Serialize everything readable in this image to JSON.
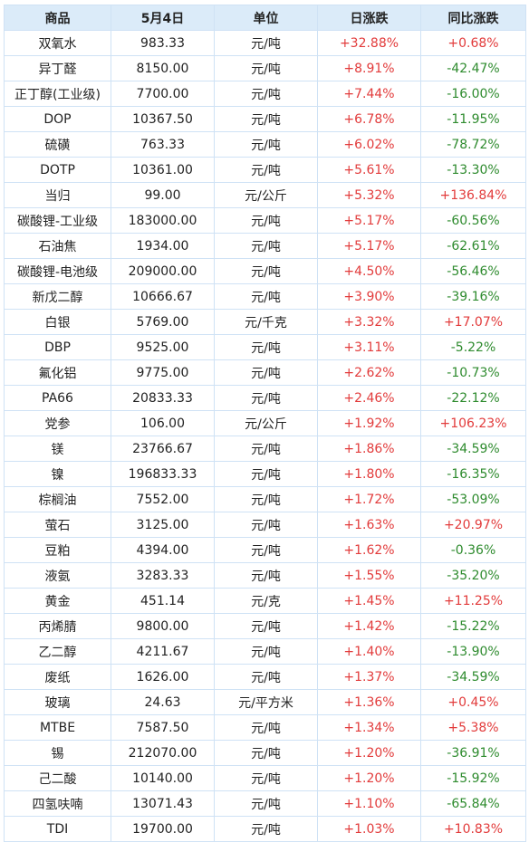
{
  "colors": {
    "up": "#e23b3b",
    "down": "#2e8b2e",
    "header_bg": "#dbebf9",
    "border": "#cfe2f5"
  },
  "table": {
    "headers": [
      "商品",
      "5月4日",
      "单位",
      "日涨跌",
      "同比涨跌"
    ],
    "rows": [
      [
        "双氧水",
        "983.33",
        "元/吨",
        "+32.88%",
        "+0.68%"
      ],
      [
        "异丁醛",
        "8150.00",
        "元/吨",
        "+8.91%",
        "-42.47%"
      ],
      [
        "正丁醇(工业级)",
        "7700.00",
        "元/吨",
        "+7.44%",
        "-16.00%"
      ],
      [
        "DOP",
        "10367.50",
        "元/吨",
        "+6.78%",
        "-11.95%"
      ],
      [
        "硫磺",
        "763.33",
        "元/吨",
        "+6.02%",
        "-78.72%"
      ],
      [
        "DOTP",
        "10361.00",
        "元/吨",
        "+5.61%",
        "-13.30%"
      ],
      [
        "当归",
        "99.00",
        "元/公斤",
        "+5.32%",
        "+136.84%"
      ],
      [
        "碳酸锂-工业级",
        "183000.00",
        "元/吨",
        "+5.17%",
        "-60.56%"
      ],
      [
        "石油焦",
        "1934.00",
        "元/吨",
        "+5.17%",
        "-62.61%"
      ],
      [
        "碳酸锂-电池级",
        "209000.00",
        "元/吨",
        "+4.50%",
        "-56.46%"
      ],
      [
        "新戊二醇",
        "10666.67",
        "元/吨",
        "+3.90%",
        "-39.16%"
      ],
      [
        "白银",
        "5769.00",
        "元/千克",
        "+3.32%",
        "+17.07%"
      ],
      [
        "DBP",
        "9525.00",
        "元/吨",
        "+3.11%",
        "-5.22%"
      ],
      [
        "氟化铝",
        "9775.00",
        "元/吨",
        "+2.62%",
        "-10.73%"
      ],
      [
        "PA66",
        "20833.33",
        "元/吨",
        "+2.46%",
        "-22.12%"
      ],
      [
        "党参",
        "106.00",
        "元/公斤",
        "+1.92%",
        "+106.23%"
      ],
      [
        "镁",
        "23766.67",
        "元/吨",
        "+1.86%",
        "-34.59%"
      ],
      [
        "镍",
        "196833.33",
        "元/吨",
        "+1.80%",
        "-16.35%"
      ],
      [
        "棕榈油",
        "7552.00",
        "元/吨",
        "+1.72%",
        "-53.09%"
      ],
      [
        "萤石",
        "3125.00",
        "元/吨",
        "+1.63%",
        "+20.97%"
      ],
      [
        "豆粕",
        "4394.00",
        "元/吨",
        "+1.62%",
        "-0.36%"
      ],
      [
        "液氨",
        "3283.33",
        "元/吨",
        "+1.55%",
        "-35.20%"
      ],
      [
        "黄金",
        "451.14",
        "元/克",
        "+1.45%",
        "+11.25%"
      ],
      [
        "丙烯腈",
        "9800.00",
        "元/吨",
        "+1.42%",
        "-15.22%"
      ],
      [
        "乙二醇",
        "4211.67",
        "元/吨",
        "+1.40%",
        "-13.90%"
      ],
      [
        "废纸",
        "1626.00",
        "元/吨",
        "+1.37%",
        "-34.59%"
      ],
      [
        "玻璃",
        "24.63",
        "元/平方米",
        "+1.36%",
        "+0.45%"
      ],
      [
        "MTBE",
        "7587.50",
        "元/吨",
        "+1.34%",
        "+5.38%"
      ],
      [
        "锡",
        "212070.00",
        "元/吨",
        "+1.20%",
        "-36.91%"
      ],
      [
        "己二酸",
        "10140.00",
        "元/吨",
        "+1.20%",
        "-15.92%"
      ],
      [
        "四氢呋喃",
        "13071.43",
        "元/吨",
        "+1.10%",
        "-65.84%"
      ],
      [
        "TDI",
        "19700.00",
        "元/吨",
        "+1.03%",
        "+10.83%"
      ]
    ]
  }
}
